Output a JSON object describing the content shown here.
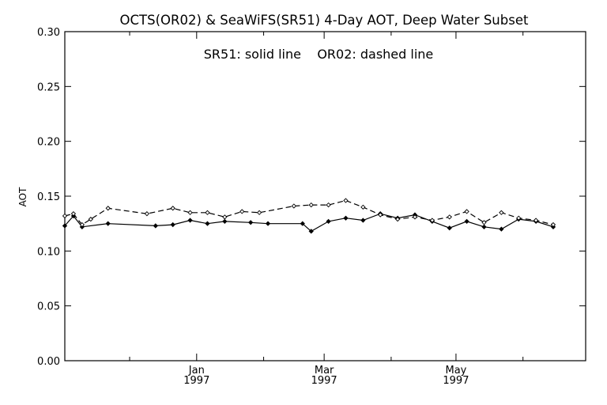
{
  "chart_data": {
    "type": "line",
    "title": "OCTS(OR02) & SeaWiFS(SR51) 4-Day AOT, Deep Water Subset",
    "annotation": "SR51: solid line    OR02: dashed line",
    "ylabel": "AOT",
    "xlabel": "",
    "ylim": [
      0.0,
      0.3
    ],
    "yticks": [
      "0.00",
      "0.05",
      "0.10",
      "0.15",
      "0.20",
      "0.25",
      "0.30"
    ],
    "xlim": [
      "1996-11-01",
      "1997-06-30"
    ],
    "xticks": [
      {
        "date": "1997-01-01",
        "month": "Jan",
        "year": "1997"
      },
      {
        "date": "1997-03-01",
        "month": "Mar",
        "year": "1997"
      },
      {
        "date": "1997-05-01",
        "month": "May",
        "year": "1997"
      }
    ],
    "minor_xticks": [
      "1996-12-01",
      "1997-02-01",
      "1997-04-01",
      "1997-06-01"
    ],
    "grid": false,
    "series": [
      {
        "name": "SR51",
        "style": "solid",
        "color": "#000000",
        "points": [
          {
            "x": "1996-11-01",
            "y": 0.123
          },
          {
            "x": "1996-11-05",
            "y": 0.132
          },
          {
            "x": "1996-11-09",
            "y": 0.122
          },
          {
            "x": "1996-11-21",
            "y": 0.125
          },
          {
            "x": "1996-12-13",
            "y": 0.123
          },
          {
            "x": "1996-12-21",
            "y": 0.124
          },
          {
            "x": "1996-12-29",
            "y": 0.128
          },
          {
            "x": "1997-01-06",
            "y": 0.125
          },
          {
            "x": "1997-01-14",
            "y": 0.127
          },
          {
            "x": "1997-01-26",
            "y": 0.126
          },
          {
            "x": "1997-02-03",
            "y": 0.125
          },
          {
            "x": "1997-02-19",
            "y": 0.125
          },
          {
            "x": "1997-02-23",
            "y": 0.118
          },
          {
            "x": "1997-03-03",
            "y": 0.127
          },
          {
            "x": "1997-03-11",
            "y": 0.13
          },
          {
            "x": "1997-03-19",
            "y": 0.128
          },
          {
            "x": "1997-03-27",
            "y": 0.134
          },
          {
            "x": "1997-04-04",
            "y": 0.13
          },
          {
            "x": "1997-04-12",
            "y": 0.133
          },
          {
            "x": "1997-04-20",
            "y": 0.127
          },
          {
            "x": "1997-04-28",
            "y": 0.121
          },
          {
            "x": "1997-05-06",
            "y": 0.127
          },
          {
            "x": "1997-05-14",
            "y": 0.122
          },
          {
            "x": "1997-05-22",
            "y": 0.12
          },
          {
            "x": "1997-05-30",
            "y": 0.129
          },
          {
            "x": "1997-06-07",
            "y": 0.127
          },
          {
            "x": "1997-06-15",
            "y": 0.122
          }
        ]
      },
      {
        "name": "OR02",
        "style": "dashed",
        "color": "#000000",
        "points": [
          {
            "x": "1996-11-01",
            "y": 0.132
          },
          {
            "x": "1996-11-05",
            "y": 0.134
          },
          {
            "x": "1996-11-09",
            "y": 0.124
          },
          {
            "x": "1996-11-13",
            "y": 0.129
          },
          {
            "x": "1996-11-21",
            "y": 0.139
          },
          {
            "x": "1996-12-09",
            "y": 0.134
          },
          {
            "x": "1996-12-21",
            "y": 0.139
          },
          {
            "x": "1996-12-29",
            "y": 0.135
          },
          {
            "x": "1997-01-06",
            "y": 0.135
          },
          {
            "x": "1997-01-14",
            "y": 0.131
          },
          {
            "x": "1997-01-22",
            "y": 0.136
          },
          {
            "x": "1997-01-30",
            "y": 0.135
          },
          {
            "x": "1997-02-15",
            "y": 0.141
          },
          {
            "x": "1997-02-23",
            "y": 0.142
          },
          {
            "x": "1997-03-03",
            "y": 0.142
          },
          {
            "x": "1997-03-11",
            "y": 0.146
          },
          {
            "x": "1997-03-19",
            "y": 0.14
          },
          {
            "x": "1997-03-27",
            "y": 0.133
          },
          {
            "x": "1997-04-04",
            "y": 0.129
          },
          {
            "x": "1997-04-12",
            "y": 0.131
          },
          {
            "x": "1997-04-20",
            "y": 0.128
          },
          {
            "x": "1997-04-28",
            "y": 0.131
          },
          {
            "x": "1997-05-06",
            "y": 0.136
          },
          {
            "x": "1997-05-14",
            "y": 0.126
          },
          {
            "x": "1997-05-22",
            "y": 0.135
          },
          {
            "x": "1997-05-30",
            "y": 0.13
          },
          {
            "x": "1997-06-07",
            "y": 0.128
          },
          {
            "x": "1997-06-15",
            "y": 0.124
          }
        ]
      }
    ]
  }
}
